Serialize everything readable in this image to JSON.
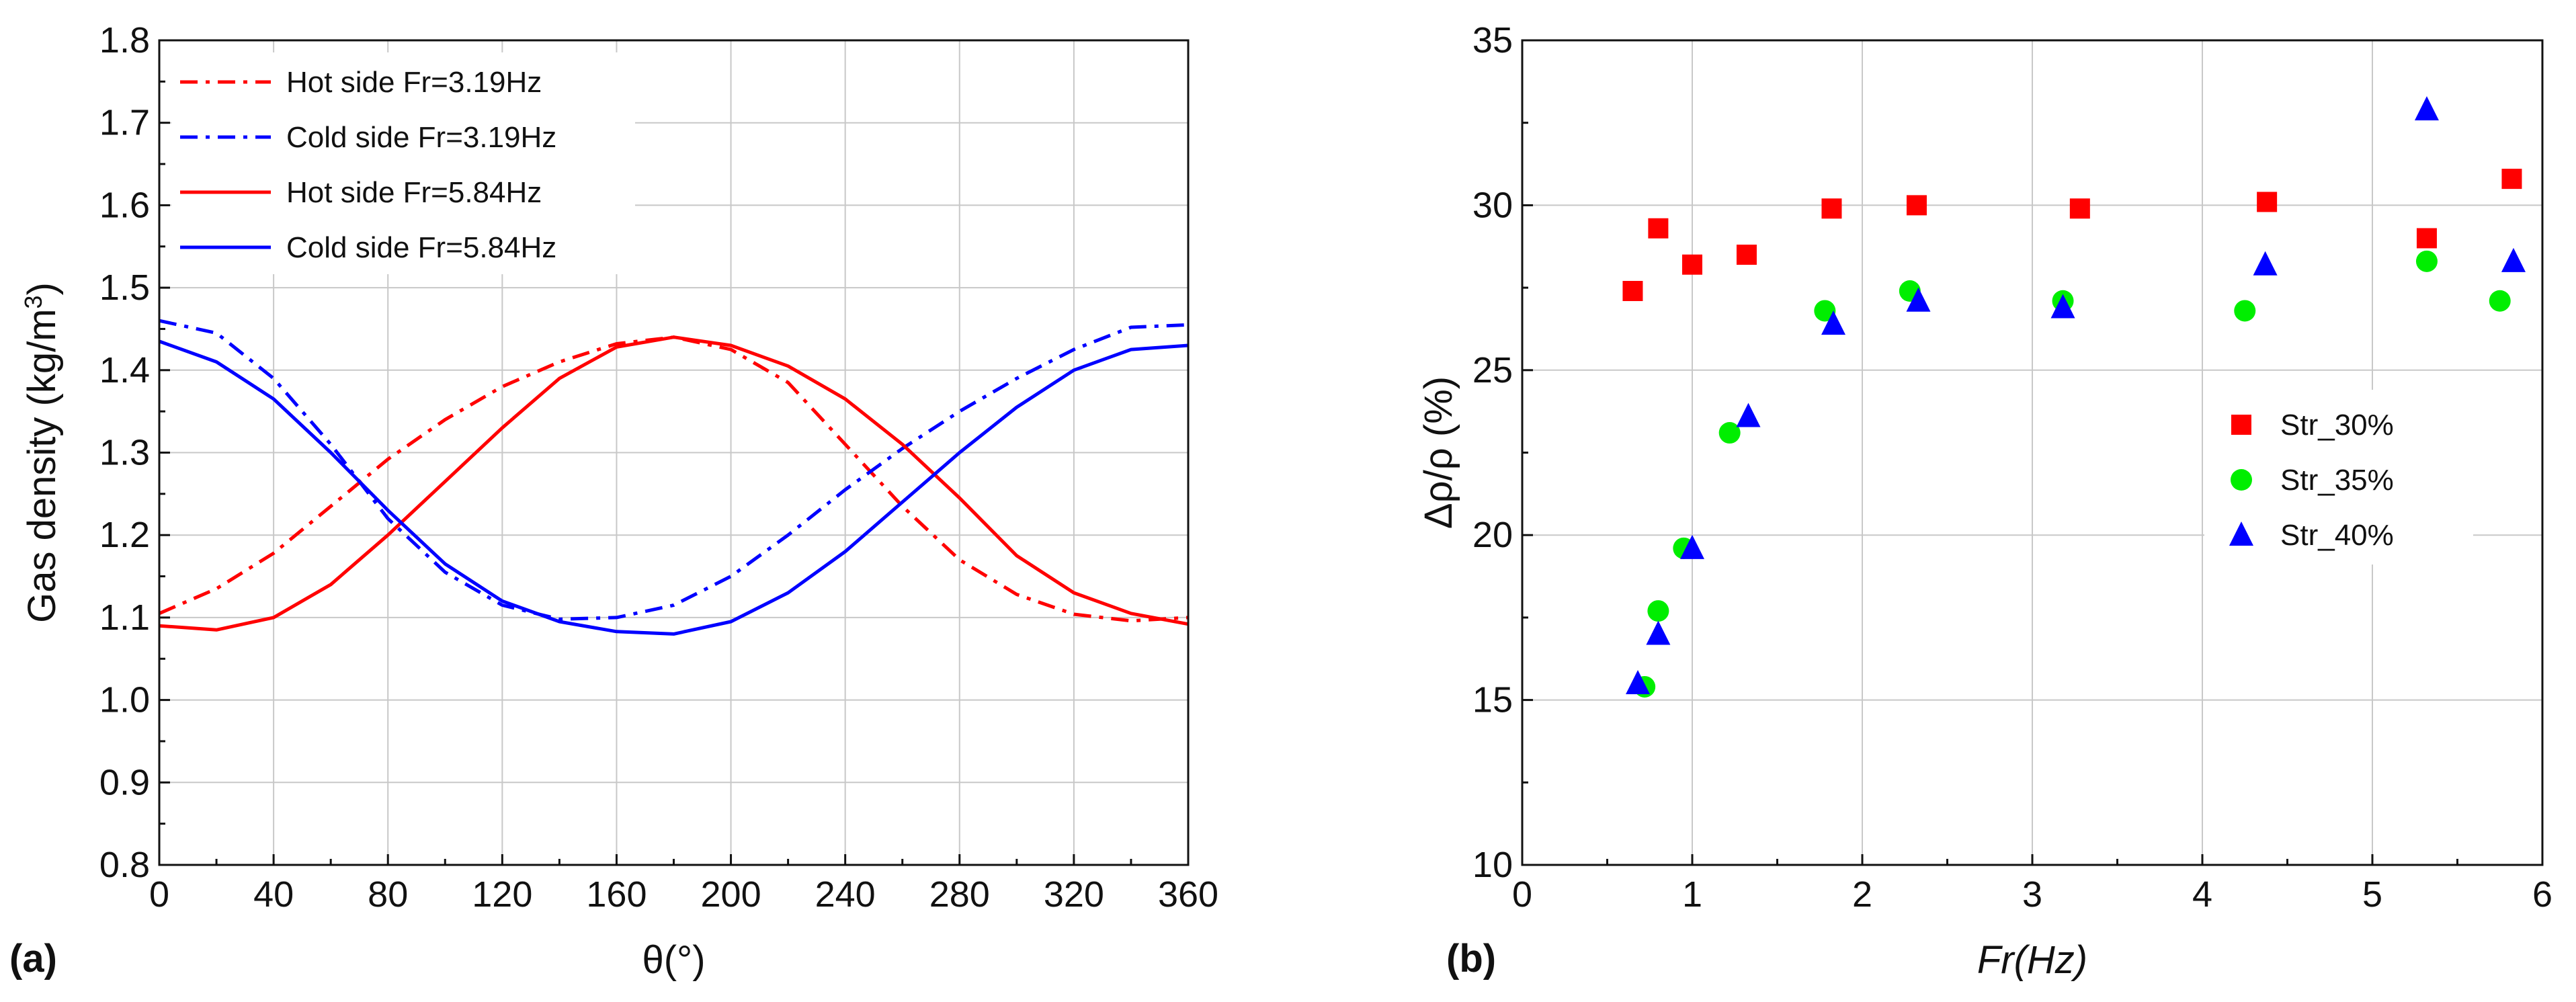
{
  "chart_data": [
    {
      "type": "line",
      "panel_label": "(a)",
      "xlabel": "θ(°)",
      "ylabel": "Gas density (kg/m",
      "ylabel_sup": "3",
      "ylabel_end": ")",
      "xlim": [
        0,
        360
      ],
      "ylim": [
        0.8,
        1.8
      ],
      "xticks": [
        "0",
        "40",
        "80",
        "120",
        "160",
        "200",
        "240",
        "280",
        "320",
        "360"
      ],
      "yticks": [
        "0.8",
        "0.9",
        "1.0",
        "1.1",
        "1.2",
        "1.3",
        "1.4",
        "1.5",
        "1.6",
        "1.7",
        "1.8"
      ],
      "grid": true,
      "legend_position": "top-left",
      "series": [
        {
          "name": "Hot side Fr=3.19Hz",
          "color": "#ff0000",
          "dash": "dashdot",
          "x": [
            0,
            20,
            40,
            60,
            80,
            100,
            120,
            140,
            160,
            180,
            200,
            220,
            240,
            260,
            280,
            300,
            320,
            340,
            360
          ],
          "y": [
            1.105,
            1.135,
            1.178,
            1.235,
            1.292,
            1.34,
            1.38,
            1.41,
            1.432,
            1.44,
            1.425,
            1.385,
            1.31,
            1.235,
            1.17,
            1.128,
            1.104,
            1.096,
            1.1
          ]
        },
        {
          "name": "Cold side Fr=3.19Hz",
          "color": "#0000ff",
          "dash": "dashdot",
          "x": [
            0,
            20,
            40,
            60,
            80,
            100,
            120,
            140,
            160,
            180,
            200,
            220,
            240,
            260,
            280,
            300,
            320,
            340,
            360
          ],
          "y": [
            1.46,
            1.445,
            1.39,
            1.31,
            1.22,
            1.155,
            1.115,
            1.098,
            1.1,
            1.115,
            1.15,
            1.2,
            1.255,
            1.305,
            1.35,
            1.39,
            1.425,
            1.452,
            1.455
          ]
        },
        {
          "name": "Hot side Fr=5.84Hz",
          "color": "#ff0000",
          "dash": "solid",
          "x": [
            0,
            20,
            40,
            60,
            80,
            100,
            120,
            140,
            160,
            180,
            200,
            220,
            240,
            260,
            280,
            300,
            320,
            340,
            360
          ],
          "y": [
            1.09,
            1.085,
            1.1,
            1.14,
            1.2,
            1.265,
            1.33,
            1.39,
            1.428,
            1.44,
            1.43,
            1.405,
            1.365,
            1.31,
            1.245,
            1.175,
            1.13,
            1.105,
            1.092
          ]
        },
        {
          "name": "Cold side Fr=5.84Hz",
          "color": "#0000ff",
          "dash": "solid",
          "x": [
            0,
            20,
            40,
            60,
            80,
            100,
            120,
            140,
            160,
            180,
            200,
            220,
            240,
            260,
            280,
            300,
            320,
            340,
            360
          ],
          "y": [
            1.435,
            1.41,
            1.365,
            1.3,
            1.23,
            1.165,
            1.12,
            1.095,
            1.083,
            1.08,
            1.095,
            1.13,
            1.18,
            1.24,
            1.3,
            1.355,
            1.4,
            1.425,
            1.43
          ]
        }
      ]
    },
    {
      "type": "scatter",
      "panel_label": "(b)",
      "xlabel": "Fr(Hz)",
      "ylabel": "Δρ/ρ (%)",
      "xlim": [
        0,
        6
      ],
      "ylim": [
        10,
        35
      ],
      "xticks": [
        "0",
        "1",
        "2",
        "3",
        "4",
        "5",
        "6"
      ],
      "yticks": [
        "10",
        "15",
        "20",
        "25",
        "30",
        "35"
      ],
      "grid": true,
      "legend_position": "center-right",
      "series": [
        {
          "name": "Str_30%",
          "color": "#ff0000",
          "marker": "square",
          "x": [
            0.65,
            0.8,
            1.0,
            1.32,
            1.82,
            2.32,
            3.28,
            4.38,
            5.32,
            5.82
          ],
          "y": [
            27.4,
            29.3,
            28.2,
            28.5,
            29.9,
            30.0,
            29.9,
            30.1,
            29.0,
            30.8
          ]
        },
        {
          "name": "Str_35%",
          "color": "#00ee00",
          "marker": "circle",
          "x": [
            0.72,
            0.8,
            0.95,
            1.22,
            1.78,
            2.28,
            3.18,
            4.25,
            5.32,
            5.75
          ],
          "y": [
            15.4,
            17.7,
            19.6,
            23.1,
            26.8,
            27.4,
            27.1,
            26.8,
            28.3,
            27.1
          ]
        },
        {
          "name": "Str_40%",
          "color": "#0000ff",
          "marker": "triangle",
          "x": [
            0.68,
            0.8,
            1.0,
            1.33,
            1.83,
            2.33,
            3.18,
            4.37,
            5.32,
            5.83
          ],
          "y": [
            15.5,
            17.0,
            19.6,
            23.6,
            26.4,
            27.1,
            26.9,
            28.2,
            32.9,
            28.3
          ]
        }
      ]
    }
  ]
}
